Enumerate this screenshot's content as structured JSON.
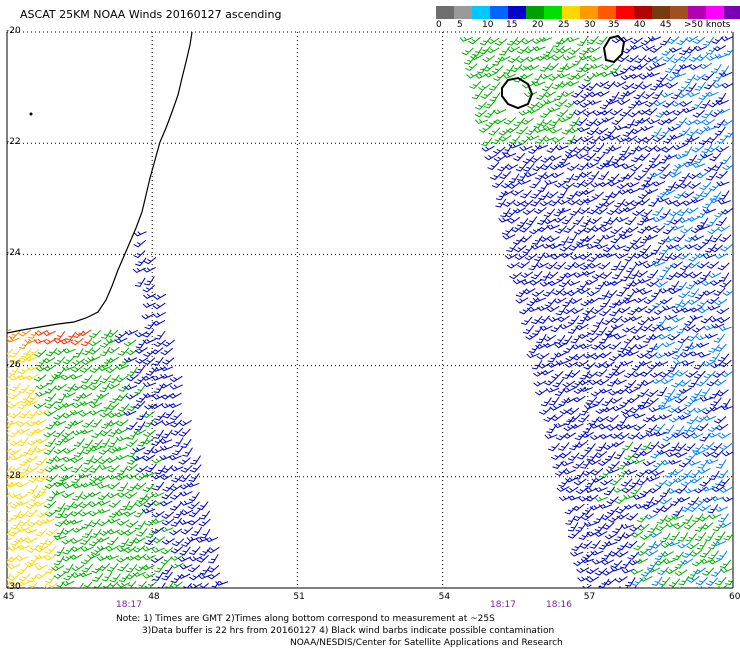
{
  "title": "ASCAT 25KM NOAA Winds 20160127 ascending",
  "legend": {
    "labels": [
      "0",
      "5",
      "10",
      "15",
      "20",
      "25",
      "30",
      "35",
      "40",
      "45",
      ">50 knots"
    ],
    "colors": [
      "#6e6e6e",
      "#9a9a9a",
      "#00c8ff",
      "#0066ff",
      "#0000c8",
      "#00a000",
      "#00e000",
      "#ffd800",
      "#ff9a00",
      "#ff5a00",
      "#ff0000",
      "#b40000",
      "#7a3a10",
      "#a05020",
      "#b400b4",
      "#ff00ff",
      "#7a00b4",
      "#4a0080"
    ]
  },
  "axes": {
    "lat_labels": [
      "-20",
      "-22",
      "-24",
      "-26",
      "-28",
      "-30"
    ],
    "lon_labels": [
      "45",
      "48",
      "51",
      "54",
      "57",
      "60"
    ],
    "lat_range": [
      -30,
      -20
    ],
    "lon_range": [
      45,
      60
    ]
  },
  "times": [
    "18:17",
    "18:17",
    "18:16"
  ],
  "note": {
    "line1": "Note: 1) Times are GMT 2)Times along bottom correspond to measurement at ~25S",
    "line2": "3)Data buffer is 22 hrs from 20160127 4) Black wind barbs indicate possible contamination",
    "line3": "NOAA/NESDIS/Center for Satellite Applications and Research"
  },
  "map_colors": {
    "coast": "#000000",
    "grid": "#000000",
    "barb_blue": "#0000c8",
    "barb_lightblue": "#0080ff",
    "barb_green": "#00b000",
    "barb_yellow": "#ffd800",
    "barb_orange": "#ff8800",
    "barb_red": "#ff3000"
  }
}
